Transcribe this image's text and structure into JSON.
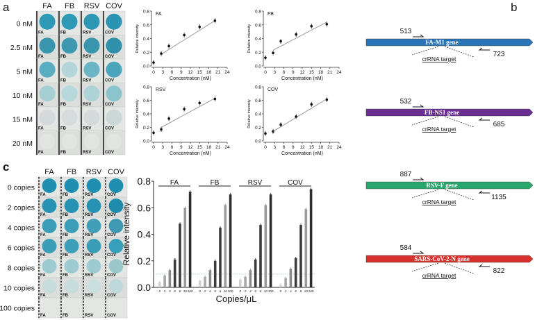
{
  "panel_labels": {
    "a": "a",
    "b": "b",
    "c": "c"
  },
  "photo_a": {
    "columns": [
      "FA",
      "FB",
      "RSV",
      "COV"
    ],
    "rows": [
      "0 nM",
      "2.5 nM",
      "5 nM",
      "10 nM",
      "15 nM",
      "20 nM"
    ],
    "spot_colors": [
      [
        "#2e9ab6",
        "#2e9ab6",
        "#2e98b4",
        "#2a94b2"
      ],
      [
        "#3a96ae",
        "#3d98b0",
        "#3a96ae",
        "#2f90ab"
      ],
      [
        "#5aaec2",
        "#b4d6d9",
        "#6ab6c6",
        "#4ba6bd"
      ],
      [
        "#a6cfd3",
        "#b6d8da",
        "#aed3d6",
        "#8cc4cc"
      ],
      [
        "#d4dadb",
        "#d6dcdc",
        "#d4dada",
        "#ccd7d8"
      ],
      [
        "#e2e4e2",
        "#e2e4e2",
        "#e2e4e2",
        "#e2e4e2"
      ]
    ]
  },
  "photo_c": {
    "columns": [
      "FA",
      "FB",
      "RSV",
      "COV"
    ],
    "rows": [
      "0 copies",
      "2 copies",
      "4 copies",
      "6 copies",
      "8 copies",
      "10 copies",
      "100 copies"
    ],
    "spot_colors": [
      [
        "#1f8fb0",
        "#1f8fb0",
        "#1f8fb0",
        "#1f8fb0"
      ],
      [
        "#2792b2",
        "#2792b2",
        "#2792b2",
        "#1f8cae"
      ],
      [
        "#3d9cb8",
        "#3d9cb8",
        "#429fba",
        "#3f98b4"
      ],
      [
        "#3a9db8",
        "#3c9eb8",
        "#3a9db8",
        "#36a0ba"
      ],
      [
        "#9ccbd2",
        "#9ccbd2",
        "#9ccbd2",
        "#9ac6cc"
      ],
      [
        "#c6dcdd",
        "#c6dcdd",
        "#cadfe0",
        "#bdd8da"
      ],
      [
        "#e4e6e4",
        "#e4e6e4",
        "#e4e6e4",
        "#e4e6e4"
      ]
    ]
  },
  "chart_data": [
    {
      "type": "scatter",
      "title": "FA",
      "xlabel": "Concentration (nM)",
      "ylabel": "Relative intensity",
      "xlim": [
        0,
        24
      ],
      "ylim": [
        0,
        0.8
      ],
      "xticks": [
        0,
        3,
        6,
        9,
        12,
        15,
        18,
        21,
        24
      ],
      "yticks": [
        0.0,
        0.2,
        0.4,
        0.6,
        0.8
      ],
      "x": [
        0,
        2.5,
        5,
        10,
        15,
        20
      ],
      "y": [
        0.05,
        0.18,
        0.29,
        0.45,
        0.57,
        0.66
      ],
      "fit": [
        [
          2.5,
          0.17
        ],
        [
          20,
          0.66
        ]
      ]
    },
    {
      "type": "scatter",
      "title": "FB",
      "xlabel": "Concentration (nM)",
      "ylabel": "Relative intensity",
      "xlim": [
        0,
        24
      ],
      "ylim": [
        0,
        0.8
      ],
      "xticks": [
        0,
        3,
        6,
        9,
        12,
        15,
        18,
        21,
        24
      ],
      "yticks": [
        0.0,
        0.2,
        0.4,
        0.6,
        0.8
      ],
      "x": [
        0,
        2.5,
        5,
        10,
        15,
        20
      ],
      "y": [
        0.12,
        0.19,
        0.36,
        0.46,
        0.58,
        0.61
      ],
      "fit": [
        [
          2.5,
          0.23
        ],
        [
          20,
          0.64
        ]
      ]
    },
    {
      "type": "scatter",
      "title": "RSV",
      "xlabel": "Concentration (nM)",
      "ylabel": "Relative intensity",
      "xlim": [
        0,
        24
      ],
      "ylim": [
        0,
        0.8
      ],
      "xticks": [
        0,
        3,
        6,
        9,
        12,
        15,
        18,
        21,
        24
      ],
      "yticks": [
        0.0,
        0.2,
        0.4,
        0.6,
        0.8
      ],
      "x": [
        0,
        2.5,
        5,
        10,
        15,
        20
      ],
      "y": [
        0.12,
        0.17,
        0.33,
        0.47,
        0.56,
        0.62
      ],
      "fit": [
        [
          2.5,
          0.2
        ],
        [
          20,
          0.63
        ]
      ]
    },
    {
      "type": "scatter",
      "title": "COV",
      "xlabel": "Concentration (nM)",
      "ylabel": "Relative intensity",
      "xlim": [
        0,
        24
      ],
      "ylim": [
        0,
        0.8
      ],
      "xticks": [
        0,
        3,
        6,
        9,
        12,
        15,
        18,
        21,
        24
      ],
      "yticks": [
        0.0,
        0.2,
        0.4,
        0.6,
        0.8
      ],
      "x": [
        0,
        2.5,
        5,
        10,
        15,
        20
      ],
      "y": [
        0.11,
        0.14,
        0.24,
        0.36,
        0.54,
        0.61
      ],
      "fit": [
        [
          2.5,
          0.14
        ],
        [
          20,
          0.62
        ]
      ]
    },
    {
      "type": "bar",
      "xlabel": "Copies/μL",
      "ylabel": "Relative intensity",
      "ylim": [
        0,
        0.8
      ],
      "yticks": [
        "0.0",
        "0.2",
        "0.4",
        "0.6",
        "0.8"
      ],
      "threshold": 0.1,
      "categories": [
        "0",
        "2",
        "4",
        "6",
        "8",
        "10",
        "100"
      ],
      "bar_colors": [
        "#d0d0d0",
        "#a8a8a8",
        "#8a8a8a",
        "#3c3c3c",
        "#3c3c3c",
        "#9a9a9a",
        "#2e2e2e"
      ],
      "groups": [
        {
          "name": "FA",
          "values": [
            0.04,
            0.09,
            0.13,
            0.21,
            0.48,
            0.6,
            0.72
          ]
        },
        {
          "name": "FB",
          "values": [
            0.05,
            0.08,
            0.13,
            0.2,
            0.45,
            0.62,
            0.7
          ]
        },
        {
          "name": "RSV",
          "values": [
            0.06,
            0.08,
            0.13,
            0.21,
            0.47,
            0.62,
            0.7
          ]
        },
        {
          "name": "COV",
          "values": [
            0.02,
            0.07,
            0.14,
            0.22,
            0.47,
            0.59,
            0.74
          ]
        }
      ]
    }
  ],
  "genes": [
    {
      "name": "FA-M1 gene",
      "forward": "513",
      "reverse": "723",
      "target": "crRNA target",
      "color": "#2b74b8"
    },
    {
      "name": "FB-NS1 gene",
      "forward": "532",
      "reverse": "685",
      "target": "crRNA target",
      "color": "#6a2d92"
    },
    {
      "name": "RSV-F gene",
      "forward": "887",
      "reverse": "1135",
      "target": "crRNA target",
      "color": "#2aa76c"
    },
    {
      "name": "SARS-CoV-2-N gene",
      "forward": "584",
      "reverse": "822",
      "target": "crRNA target",
      "color": "#d8302d"
    }
  ]
}
